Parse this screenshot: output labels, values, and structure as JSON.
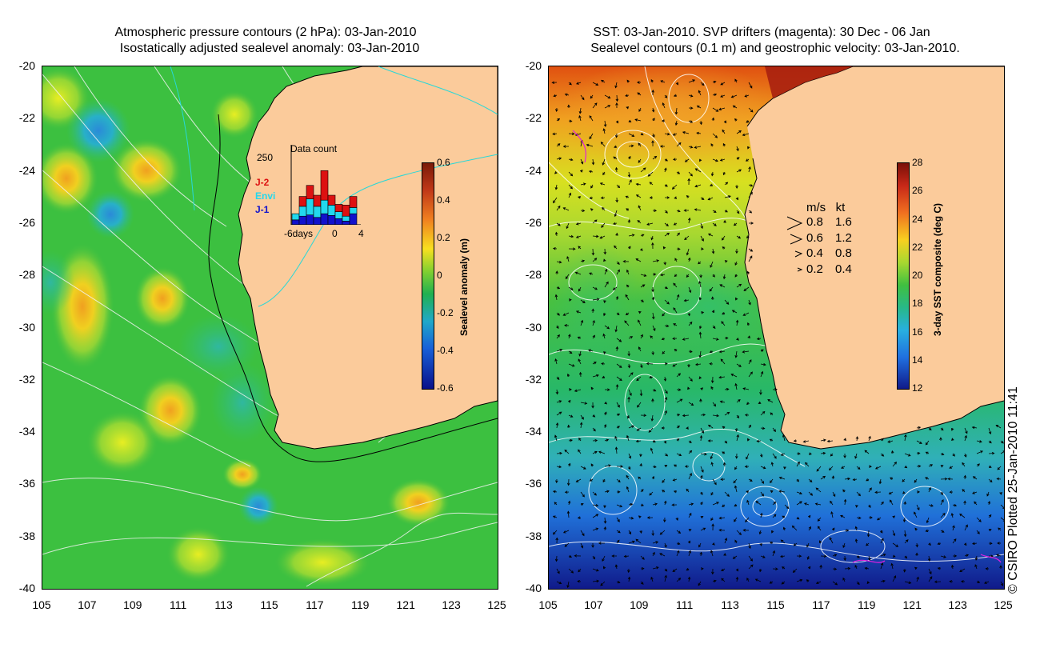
{
  "left_panel": {
    "title_line1": "Atmospheric pressure contours (2 hPa): 03-Jan-2010",
    "title_line2": "Isostatically adjusted sealevel anomaly: 03-Jan-2010",
    "colorbar": {
      "label": "Sealevel anomaly (m)",
      "ticks": [
        "0.6",
        "0.4",
        "0.2",
        "0",
        "-0.2",
        "-0.4",
        "-0.6"
      ]
    },
    "inset": {
      "title": "Data count",
      "y_max_label": "250",
      "x_labels": [
        "-6days",
        "0",
        "4"
      ],
      "series": [
        {
          "name": "J-2",
          "color": "#dd1111"
        },
        {
          "name": "Envi",
          "color": "#22d8ee"
        },
        {
          "name": "J-1",
          "color": "#1111cc"
        }
      ],
      "bars": [
        {
          "j1": 20,
          "envi": 25,
          "j2": 0
        },
        {
          "j1": 35,
          "envi": 40,
          "j2": 40
        },
        {
          "j1": 40,
          "envi": 65,
          "j2": 55
        },
        {
          "j1": 30,
          "envi": 45,
          "j2": 45
        },
        {
          "j1": 45,
          "envi": 55,
          "j2": 120
        },
        {
          "j1": 38,
          "envi": 42,
          "j2": 40
        },
        {
          "j1": 25,
          "envi": 28,
          "j2": 30
        },
        {
          "j1": 15,
          "envi": 20,
          "j2": 45
        },
        {
          "j1": 45,
          "envi": 25,
          "j2": 45
        }
      ]
    }
  },
  "right_panel": {
    "title_line1": "SST: 03-Jan-2010. SVP drifters (magenta): 30 Dec - 06 Jan",
    "title_line2": "Sealevel contours (0.1 m) and geostrophic velocity: 03-Jan-2010.",
    "colorbar": {
      "label": "3-day SST composite (deg C)",
      "ticks": [
        "28",
        "26",
        "24",
        "22",
        "20",
        "18",
        "16",
        "14",
        "12"
      ]
    },
    "velocity_legend": {
      "header": "m/s   kt",
      "rows": [
        {
          "ms": "0.8",
          "kt": "1.6"
        },
        {
          "ms": "0.6",
          "kt": "1.2"
        },
        {
          "ms": "0.4",
          "kt": "0.8"
        },
        {
          "ms": "0.2",
          "kt": "0.4"
        }
      ]
    }
  },
  "axes": {
    "lat_ticks": [
      "-20",
      "-22",
      "-24",
      "-26",
      "-28",
      "-30",
      "-32",
      "-34",
      "-36",
      "-38",
      "-40"
    ],
    "lon_ticks": [
      "105",
      "107",
      "109",
      "111",
      "113",
      "115",
      "117",
      "119",
      "121",
      "123",
      "125"
    ]
  },
  "stamp": "© CSIRO Plotted 25-Jan-2010 11:41"
}
